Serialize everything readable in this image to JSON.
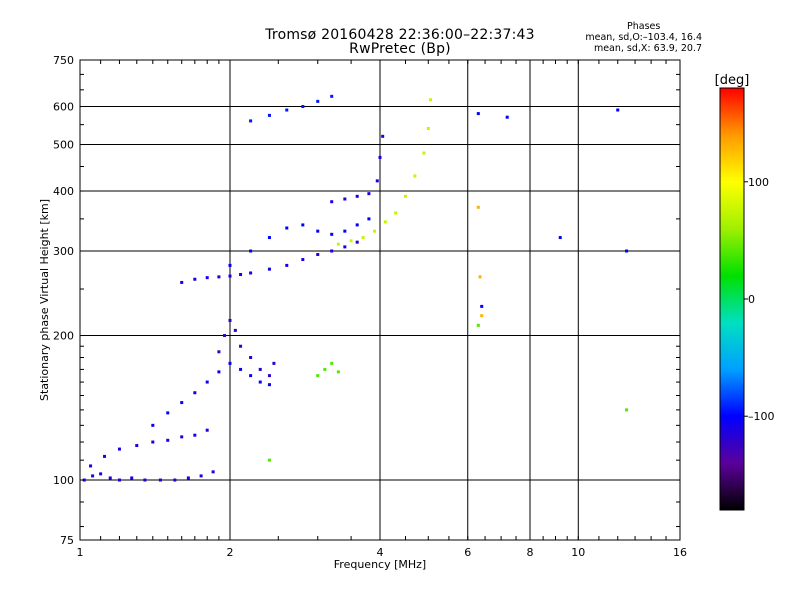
{
  "header": {
    "title_line1": "Tromsø 20160428 22:36:00–22:37:43",
    "title_line2": "RwPretec (Bp)"
  },
  "stats": {
    "heading": "Phases",
    "line1": "mean, sd,O:–103.4, 16.4",
    "line2": "mean, sd,X:  63.9, 20.7"
  },
  "chart_data": {
    "type": "scatter",
    "xlabel": "Frequency [MHz]",
    "ylabel": "Stationary phase Virtual Height [km]",
    "x_scale": "log",
    "y_scale": "log",
    "xlim": [
      1,
      16
    ],
    "ylim": [
      75,
      750
    ],
    "x_ticks": [
      1,
      2,
      4,
      6,
      8,
      10,
      16
    ],
    "x_tick_labels": [
      "1",
      "2",
      "4",
      "6",
      "8",
      "10",
      "16"
    ],
    "y_ticks": [
      75,
      100,
      200,
      300,
      400,
      500,
      600,
      750
    ],
    "y_tick_labels": [
      "75",
      "100",
      "200",
      "300",
      "400",
      "500",
      "600",
      "750"
    ],
    "grid": true,
    "colorbar": {
      "label": "[deg]",
      "range": [
        -180,
        180
      ],
      "ticks": [
        100,
        0,
        -100
      ],
      "tick_labels": [
        "100",
        "0",
        "–100"
      ],
      "colors": [
        "#000000",
        "#5b009b",
        "#0000ff",
        "#00a0ff",
        "#00e0c0",
        "#00e000",
        "#a0f000",
        "#ffff00",
        "#ff9900",
        "#ff0000"
      ]
    },
    "series": [
      {
        "phase_deg": -115,
        "x": [
          1.02,
          1.06,
          1.1,
          1.15,
          1.2,
          1.27,
          1.35,
          1.45,
          1.55,
          1.65,
          1.75,
          1.85
        ],
        "y": [
          100,
          102,
          103,
          101,
          100,
          101,
          100,
          100,
          100,
          101,
          102,
          104
        ]
      },
      {
        "phase_deg": -110,
        "x": [
          1.05,
          1.12,
          1.2,
          1.3,
          1.4,
          1.5,
          1.6,
          1.7,
          1.8
        ],
        "y": [
          107,
          112,
          116,
          118,
          120,
          121,
          123,
          124,
          127
        ]
      },
      {
        "phase_deg": -105,
        "x": [
          1.4,
          1.5,
          1.6,
          1.7,
          1.8,
          1.9,
          2.0,
          2.1,
          2.2,
          2.3,
          2.4
        ],
        "y": [
          130,
          138,
          145,
          152,
          160,
          168,
          175,
          170,
          165,
          160,
          158
        ]
      },
      {
        "phase_deg": -120,
        "x": [
          1.9,
          1.95,
          2.0,
          2.05,
          2.1,
          2.2,
          2.3,
          2.4,
          2.45
        ],
        "y": [
          185,
          200,
          215,
          205,
          190,
          180,
          170,
          165,
          175
        ]
      },
      {
        "phase_deg": -110,
        "x": [
          1.6,
          1.7,
          1.8,
          1.9,
          2.0,
          2.1,
          2.2,
          2.4,
          2.6,
          2.8,
          3.0,
          3.2,
          3.4,
          3.6
        ],
        "y": [
          258,
          262,
          264,
          265,
          266,
          268,
          270,
          275,
          280,
          288,
          295,
          300,
          306,
          313
        ]
      },
      {
        "phase_deg": -100,
        "x": [
          2.0,
          2.2,
          2.4,
          2.6,
          2.8,
          3.0,
          3.2,
          3.4,
          3.6,
          3.8
        ],
        "y": [
          280,
          300,
          320,
          335,
          340,
          330,
          325,
          330,
          340,
          350
        ]
      },
      {
        "phase_deg": -110,
        "x": [
          3.2,
          3.4,
          3.6,
          3.8,
          3.95,
          4.0,
          4.05
        ],
        "y": [
          380,
          385,
          390,
          395,
          420,
          470,
          520
        ]
      },
      {
        "phase_deg": -95,
        "x": [
          2.2,
          2.4,
          2.6,
          2.8,
          3.0,
          3.2
        ],
        "y": [
          560,
          575,
          590,
          600,
          615,
          630
        ]
      },
      {
        "phase_deg": 75,
        "x": [
          3.3,
          3.5,
          3.7,
          3.9,
          4.1,
          4.3,
          4.5,
          4.7,
          4.9,
          5.0,
          5.05
        ],
        "y": [
          310,
          315,
          320,
          330,
          345,
          360,
          390,
          430,
          480,
          540,
          620
        ]
      },
      {
        "phase_deg": 40,
        "x": [
          3.0,
          3.1,
          3.2,
          3.3
        ],
        "y": [
          165,
          170,
          175,
          168
        ]
      },
      {
        "phase_deg": -100,
        "x": [
          6.3,
          6.4,
          7.2,
          9.2,
          12.0,
          12.5
        ],
        "y": [
          580,
          230,
          570,
          320,
          590,
          300
        ]
      },
      {
        "phase_deg": 130,
        "x": [
          6.3,
          6.35,
          6.4
        ],
        "y": [
          370,
          265,
          220
        ]
      },
      {
        "phase_deg": 40,
        "x": [
          12.5,
          6.3,
          2.4
        ],
        "y": [
          140,
          210,
          110
        ]
      }
    ]
  }
}
